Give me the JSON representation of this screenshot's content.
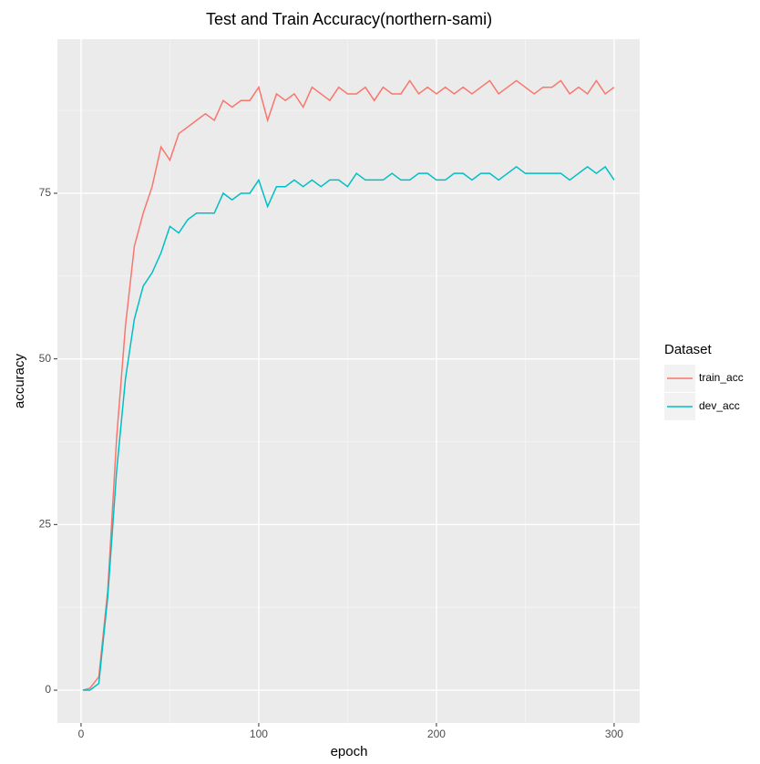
{
  "chart_data": {
    "type": "line",
    "title": "Test and Train Accuracy(northern-sami)",
    "x_label": "epoch",
    "y_label": "accuracy",
    "legend_title": "Dataset",
    "legend_position": "right",
    "grid": true,
    "x": [
      1,
      5,
      10,
      15,
      20,
      25,
      30,
      35,
      40,
      45,
      50,
      55,
      60,
      65,
      70,
      75,
      80,
      85,
      90,
      95,
      100,
      105,
      110,
      115,
      120,
      125,
      130,
      135,
      140,
      145,
      150,
      155,
      160,
      165,
      170,
      175,
      180,
      185,
      190,
      195,
      200,
      205,
      210,
      215,
      220,
      225,
      230,
      235,
      240,
      245,
      250,
      255,
      260,
      265,
      270,
      275,
      280,
      285,
      290,
      295,
      300
    ],
    "series": [
      {
        "name": "train_acc",
        "color": "#f8766d",
        "values": [
          0,
          0.3,
          2,
          15,
          38,
          55,
          67,
          72,
          76,
          82,
          80,
          84,
          85,
          86,
          87,
          86,
          89,
          88,
          89,
          89,
          91,
          86,
          90,
          89,
          90,
          88,
          91,
          90,
          89,
          91,
          90,
          90,
          91,
          89,
          91,
          90,
          90,
          92,
          90,
          91,
          90,
          91,
          90,
          91,
          90,
          91,
          92,
          90,
          91,
          92,
          91,
          90,
          91,
          91,
          92,
          90,
          91,
          90,
          92,
          90,
          91
        ]
      },
      {
        "name": "dev_acc",
        "color": "#00bfc4",
        "values": [
          0,
          0,
          1,
          14,
          33,
          47,
          56,
          61,
          63,
          66,
          70,
          69,
          71,
          72,
          72,
          72,
          75,
          74,
          75,
          75,
          77,
          73,
          76,
          76,
          77,
          76,
          77,
          76,
          77,
          77,
          76,
          78,
          77,
          77,
          77,
          78,
          77,
          77,
          78,
          78,
          77,
          77,
          78,
          78,
          77,
          78,
          78,
          77,
          78,
          79,
          78,
          78,
          78,
          78,
          78,
          77,
          78,
          79,
          78,
          79,
          77
        ]
      }
    ],
    "xlim": [
      -13.3,
      314.4
    ],
    "xticks": [
      0,
      100,
      200,
      300
    ],
    "x_minor_ticks": [
      50,
      150,
      250
    ],
    "ylim": [
      -4.95,
      98.25
    ],
    "yticks": [
      0,
      25,
      50,
      75
    ],
    "y_minor_ticks": [
      12.5,
      37.5,
      62.5,
      87.5
    ]
  }
}
